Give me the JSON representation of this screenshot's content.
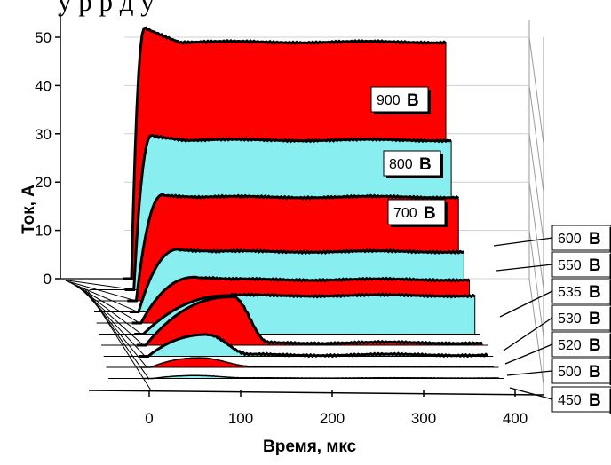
{
  "caption_fragment": "у   р р д   у",
  "chart_data": {
    "type": "area",
    "projection": "3d-waterfall",
    "xlabel": "Время, мкс",
    "ylabel": "Ток, А",
    "xlim": [
      -40,
      410
    ],
    "ylim": [
      0,
      55
    ],
    "x_ticks": [
      "0",
      "100",
      "200",
      "300",
      "400"
    ],
    "y_ticks": [
      "0",
      "10",
      "20",
      "30",
      "40",
      "50"
    ],
    "grid": true,
    "unit": "В",
    "series": [
      {
        "name": "900",
        "color": "#ff0000",
        "plateau": 49,
        "peak": 52,
        "rise_end": 15,
        "decay": null
      },
      {
        "name": "800",
        "color": "#88eef0",
        "plateau": 31,
        "peak": 32,
        "rise_end": 20,
        "decay": null
      },
      {
        "name": "700",
        "color": "#ff0000",
        "plateau": 21.5,
        "peak": 22,
        "rise_end": 30,
        "decay": null
      },
      {
        "name": "600",
        "color": "#88eef0",
        "plateau": 12.5,
        "peak": 13,
        "rise_end": 45,
        "decay": null
      },
      {
        "name": "550",
        "color": "#ff0000",
        "plateau": 9,
        "peak": 9.5,
        "rise_end": 60,
        "decay": null
      },
      {
        "name": "535",
        "color": "#88eef0",
        "plateau": 8,
        "peak": 8,
        "rise_end": 95,
        "decay": null
      },
      {
        "name": "530",
        "color": "#ff0000",
        "plateau": 0.5,
        "peak": 10,
        "rise_end": 95,
        "decay": 135
      },
      {
        "name": "520",
        "color": "#88eef0",
        "plateau": 0.3,
        "peak": 4.5,
        "rise_end": 65,
        "decay": 110
      },
      {
        "name": "500",
        "color": "#ff0000",
        "plateau": 0.2,
        "peak": 2,
        "rise_end": 55,
        "decay": 110
      },
      {
        "name": "450",
        "color": "#88eef0",
        "plateau": 0.1,
        "peak": 0.6,
        "rise_end": 50,
        "decay": 100
      }
    ]
  }
}
